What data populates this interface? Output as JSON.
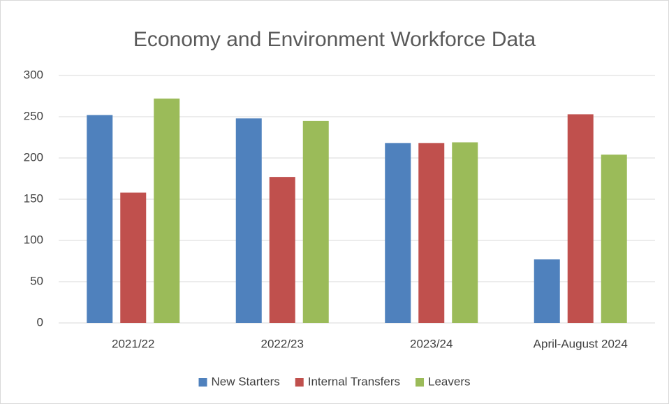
{
  "chart_data": {
    "type": "bar",
    "title": "Economy and Environment Workforce Data",
    "categories": [
      "2021/22",
      "2022/23",
      "2023/24",
      "April-August 2024"
    ],
    "series": [
      {
        "name": "New Starters",
        "color": "#4f81bd",
        "values": [
          252,
          248,
          218,
          77
        ]
      },
      {
        "name": "Internal Transfers",
        "color": "#c0504d",
        "values": [
          158,
          177,
          218,
          253
        ]
      },
      {
        "name": "Leavers",
        "color": "#9bbb59",
        "values": [
          272,
          245,
          219,
          204
        ]
      }
    ],
    "ylim": [
      0,
      300
    ],
    "yticks": [
      0,
      50,
      100,
      150,
      200,
      250,
      300
    ],
    "grid": true,
    "legend": "bottom"
  }
}
